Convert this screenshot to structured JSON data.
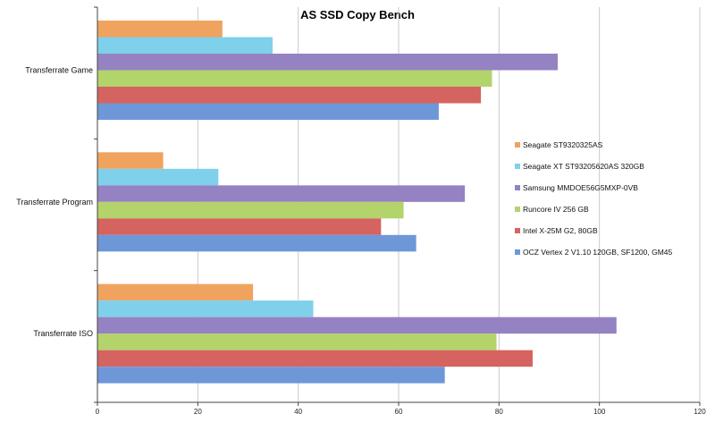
{
  "chart_data": {
    "type": "bar",
    "orientation": "horizontal",
    "title": "AS SSD Copy Bench",
    "xlabel": "",
    "ylabel": "",
    "xlim": [
      0,
      120
    ],
    "x_ticks": [
      0,
      20,
      40,
      60,
      80,
      100,
      120
    ],
    "grid": "vertical",
    "legend_position": "right",
    "categories": [
      "Transferrate Game",
      "Transferrate Program",
      "Transferrate ISO"
    ],
    "series": [
      {
        "name": "Seagate ST9320325AS",
        "color": "#f0a35e",
        "values": [
          24.9,
          13.1,
          31.0
        ]
      },
      {
        "name": "Seagate XT ST93205620AS 320GB",
        "color": "#7fd0ea",
        "values": [
          34.9,
          24.1,
          43.0
        ]
      },
      {
        "name": "Samsung MMDOE56G5MXP-0VB",
        "color": "#9582c3",
        "values": [
          91.7,
          73.2,
          103.4
        ]
      },
      {
        "name": "Runcore IV 256 GB",
        "color": "#b3d36b",
        "values": [
          78.6,
          61.0,
          79.5
        ]
      },
      {
        "name": "Intel X-25M G2, 80GB",
        "color": "#d56360",
        "values": [
          76.4,
          56.5,
          86.7
        ]
      },
      {
        "name": "OCZ Vertex 2 V1.10 120GB, SF1200, GM45",
        "color": "#6e97d8",
        "values": [
          68.0,
          63.5,
          69.2
        ]
      }
    ]
  }
}
